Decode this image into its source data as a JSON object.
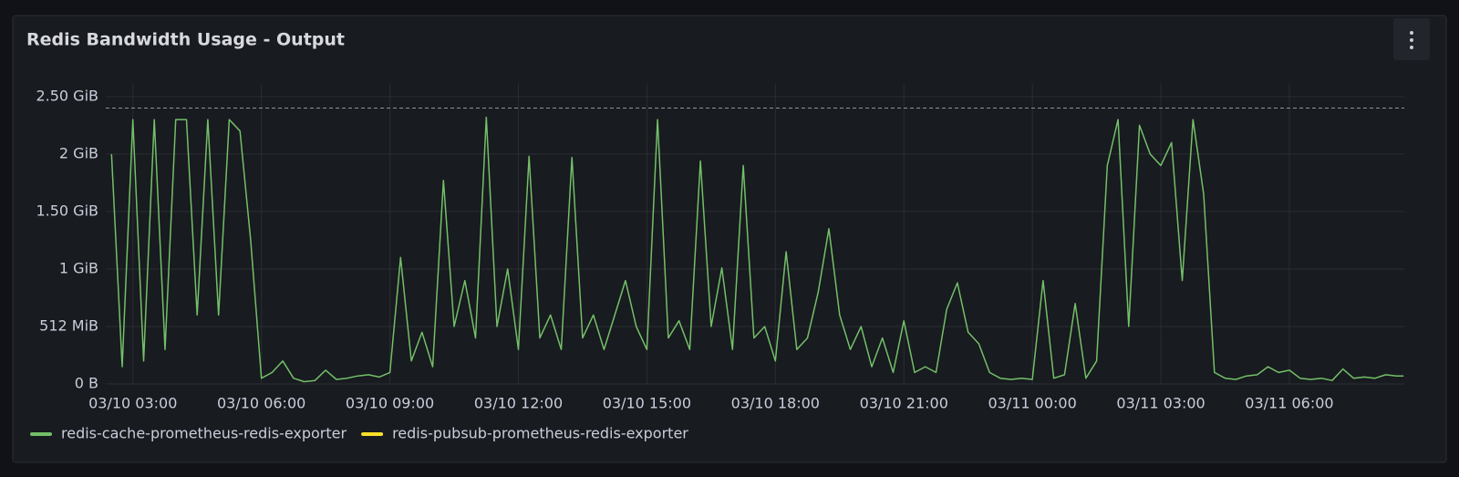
{
  "chart_data": {
    "type": "line",
    "title": "Redis Bandwidth Usage - Output",
    "x": [
      "03/10 02:30",
      "03/10 02:45",
      "03/10 03:00",
      "03/10 03:15",
      "03/10 03:30",
      "03/10 03:45",
      "03/10 04:00",
      "03/10 04:15",
      "03/10 04:30",
      "03/10 04:45",
      "03/10 05:00",
      "03/10 05:15",
      "03/10 05:30",
      "03/10 05:45",
      "03/10 06:00",
      "03/10 06:15",
      "03/10 06:30",
      "03/10 06:45",
      "03/10 07:00",
      "03/10 07:15",
      "03/10 07:30",
      "03/10 07:45",
      "03/10 08:00",
      "03/10 08:15",
      "03/10 08:30",
      "03/10 08:45",
      "03/10 09:00",
      "03/10 09:15",
      "03/10 09:30",
      "03/10 09:45",
      "03/10 10:00",
      "03/10 10:15",
      "03/10 10:30",
      "03/10 10:45",
      "03/10 11:00",
      "03/10 11:15",
      "03/10 11:30",
      "03/10 11:45",
      "03/10 12:00",
      "03/10 12:15",
      "03/10 12:30",
      "03/10 12:45",
      "03/10 13:00",
      "03/10 13:15",
      "03/10 13:30",
      "03/10 13:45",
      "03/10 14:00",
      "03/10 14:15",
      "03/10 14:30",
      "03/10 14:45",
      "03/10 15:00",
      "03/10 15:15",
      "03/10 15:30",
      "03/10 15:45",
      "03/10 16:00",
      "03/10 16:15",
      "03/10 16:30",
      "03/10 16:45",
      "03/10 17:00",
      "03/10 17:15",
      "03/10 17:30",
      "03/10 17:45",
      "03/10 18:00",
      "03/10 18:15",
      "03/10 18:30",
      "03/10 18:45",
      "03/10 19:00",
      "03/10 19:15",
      "03/10 19:30",
      "03/10 19:45",
      "03/10 20:00",
      "03/10 20:15",
      "03/10 20:30",
      "03/10 20:45",
      "03/10 21:00",
      "03/10 21:15",
      "03/10 21:30",
      "03/10 21:45",
      "03/10 22:00",
      "03/10 22:15",
      "03/10 22:30",
      "03/10 22:45",
      "03/10 23:00",
      "03/10 23:15",
      "03/10 23:30",
      "03/10 23:45",
      "03/11 00:00",
      "03/11 00:15",
      "03/11 00:30",
      "03/11 00:45",
      "03/11 01:00",
      "03/11 01:15",
      "03/11 01:30",
      "03/11 01:45",
      "03/11 02:00",
      "03/11 02:15",
      "03/11 02:30",
      "03/11 02:45",
      "03/11 03:00",
      "03/11 03:15",
      "03/11 03:30",
      "03/11 03:45",
      "03/11 04:00",
      "03/11 04:15",
      "03/11 04:30",
      "03/11 04:45",
      "03/11 05:00",
      "03/11 05:15",
      "03/11 05:30",
      "03/11 05:45",
      "03/11 06:00",
      "03/11 06:15",
      "03/11 06:30",
      "03/11 06:45",
      "03/11 07:00",
      "03/11 07:15",
      "03/11 07:30",
      "03/11 07:45",
      "03/11 08:00",
      "03/11 08:15",
      "03/11 08:30",
      "03/11 08:40"
    ],
    "series": [
      {
        "name": "redis-cache-prometheus-redis-exporter",
        "color": "#73bf69",
        "values": [
          2.0,
          0.15,
          2.3,
          0.2,
          2.3,
          0.3,
          2.3,
          2.3,
          0.6,
          2.3,
          0.6,
          2.3,
          2.2,
          1.25,
          0.05,
          0.1,
          0.2,
          0.05,
          0.02,
          0.03,
          0.12,
          0.04,
          0.05,
          0.07,
          0.08,
          0.06,
          0.1,
          1.1,
          0.2,
          0.45,
          0.15,
          1.77,
          0.5,
          0.9,
          0.4,
          2.32,
          0.5,
          1.0,
          0.3,
          1.98,
          0.4,
          0.6,
          0.3,
          1.97,
          0.4,
          0.6,
          0.3,
          0.6,
          0.9,
          0.5,
          0.3,
          2.3,
          0.4,
          0.55,
          0.3,
          1.94,
          0.5,
          1.01,
          0.3,
          1.9,
          0.4,
          0.5,
          0.2,
          1.15,
          0.3,
          0.4,
          0.8,
          1.35,
          0.6,
          0.3,
          0.5,
          0.15,
          0.4,
          0.1,
          0.55,
          0.1,
          0.15,
          0.1,
          0.65,
          0.88,
          0.45,
          0.35,
          0.1,
          0.05,
          0.04,
          0.05,
          0.04,
          0.9,
          0.05,
          0.08,
          0.7,
          0.05,
          0.2,
          1.9,
          2.3,
          0.5,
          2.25,
          2.0,
          1.9,
          2.1,
          0.9,
          2.3,
          1.65,
          0.1,
          0.05,
          0.04,
          0.07,
          0.08,
          0.15,
          0.1,
          0.12,
          0.05,
          0.04,
          0.05,
          0.03,
          0.13,
          0.05,
          0.06,
          0.05,
          0.08,
          0.07,
          0.07
        ]
      },
      {
        "name": "redis-pubsub-prometheus-redis-exporter",
        "color": "#fade2a",
        "hidden": true,
        "values": [
          null,
          null,
          null,
          null,
          null,
          null,
          null,
          null,
          null,
          null,
          null,
          null,
          null,
          null,
          null,
          null,
          null,
          null,
          null,
          null,
          null,
          null,
          null,
          null,
          null,
          null,
          null,
          null,
          null,
          null,
          null,
          null,
          null,
          null,
          null,
          null,
          null,
          null,
          null,
          null,
          null,
          null,
          null,
          null,
          null,
          null,
          null,
          null,
          null,
          null,
          null,
          null,
          null,
          null,
          null,
          null,
          null,
          null,
          null,
          null,
          null,
          null,
          null,
          null,
          null,
          null,
          null,
          null,
          null,
          null,
          null,
          null,
          null,
          null,
          null,
          null,
          null,
          null,
          null,
          null,
          null,
          null,
          null,
          null,
          null,
          null,
          null,
          null,
          null,
          null,
          null,
          null,
          null,
          null,
          null,
          null,
          null,
          null,
          null,
          null,
          null,
          null,
          null,
          null,
          null,
          null,
          null,
          null,
          null,
          null,
          null,
          null,
          null,
          null,
          null,
          null,
          null,
          null,
          null,
          null,
          null,
          null
        ]
      }
    ],
    "xlim": [
      "03/10 02:22",
      "03/11 08:41"
    ],
    "xticks": [
      "03/10 03:00",
      "03/10 06:00",
      "03/10 09:00",
      "03/10 12:00",
      "03/10 15:00",
      "03/10 18:00",
      "03/10 21:00",
      "03/11 00:00",
      "03/11 03:00",
      "03/11 06:00"
    ],
    "ylim": [
      0,
      2.61
    ],
    "yticks": [
      {
        "value": 0,
        "label": "0 B"
      },
      {
        "value": 0.5,
        "label": "512 MiB"
      },
      {
        "value": 1,
        "label": "1 GiB"
      },
      {
        "value": 1.5,
        "label": "1.50 GiB"
      },
      {
        "value": 2,
        "label": "2 GiB"
      },
      {
        "value": 2.5,
        "label": "2.50 GiB"
      }
    ],
    "threshold": 2.4,
    "grid": true,
    "legend": "bottom-left"
  }
}
